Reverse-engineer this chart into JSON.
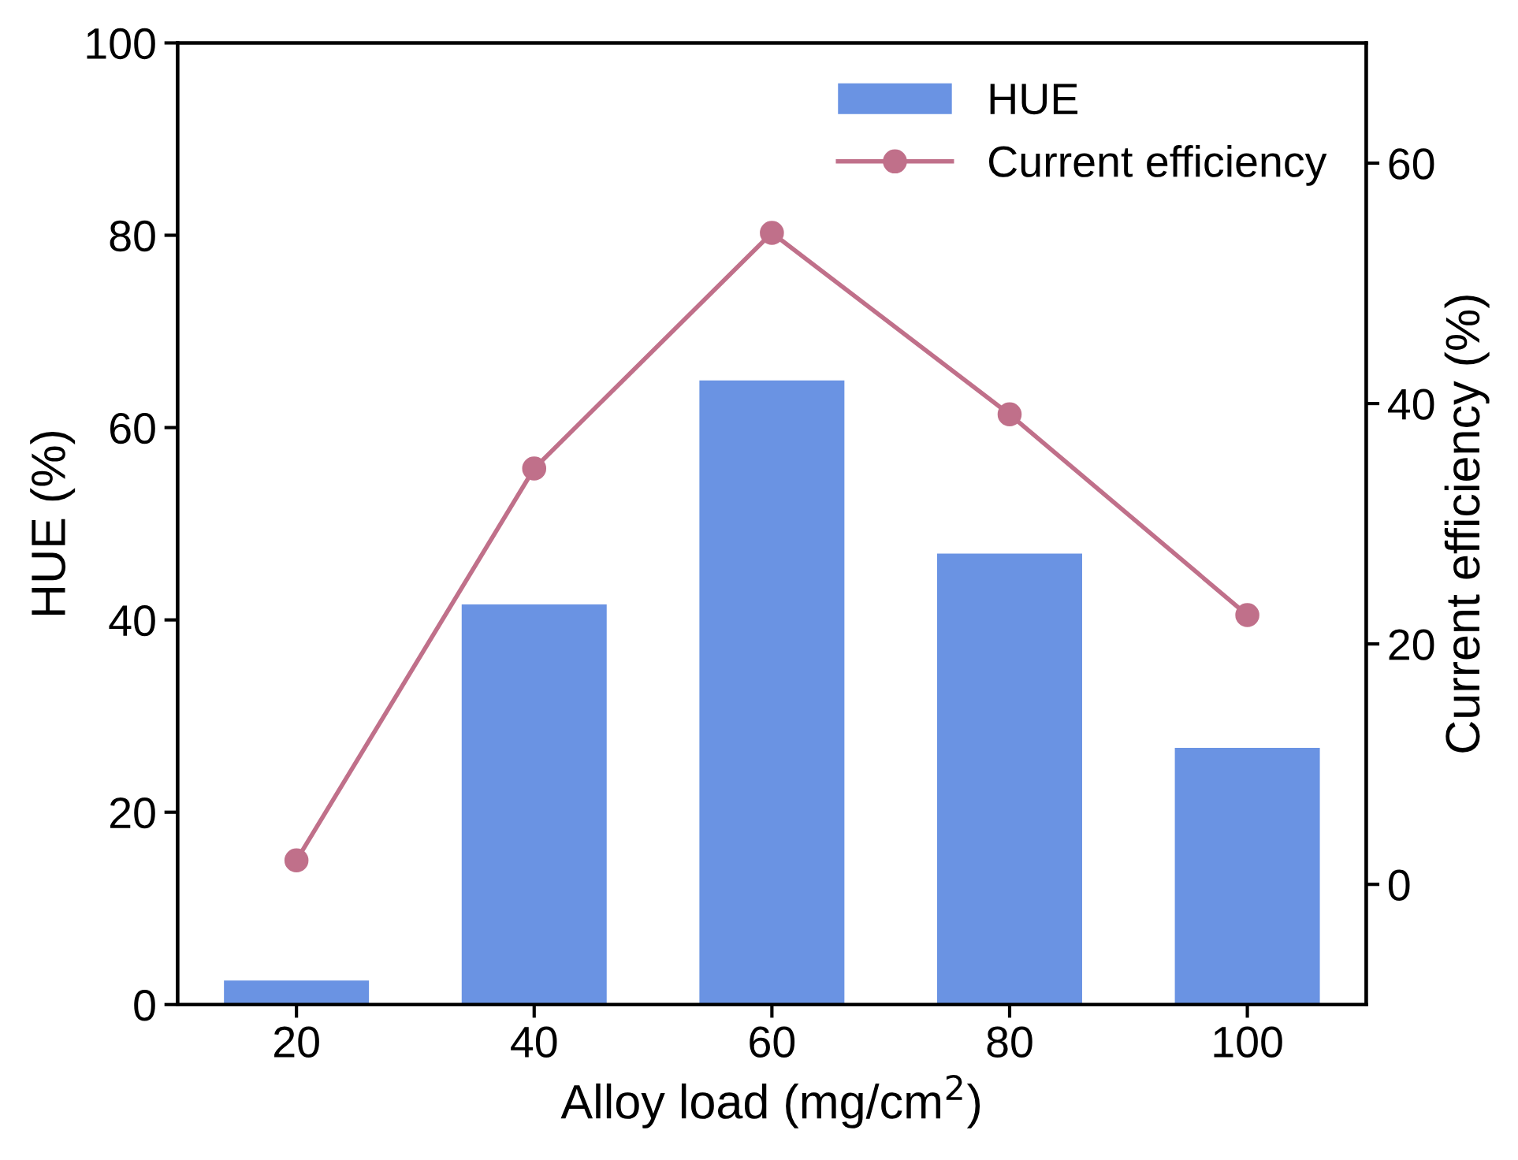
{
  "chart_data": {
    "type": "bar",
    "xlabel": "Alloy load (mg/cm$^{2}$)",
    "ylabel": "HUE (%)",
    "y2label": "Current efficiency (%)",
    "x": [
      20,
      40,
      60,
      80,
      100
    ],
    "xlim": [
      10,
      110
    ],
    "xticks": [
      20,
      40,
      60,
      80,
      100
    ],
    "ylim": [
      0,
      100
    ],
    "yticks": [
      0,
      20,
      40,
      60,
      80,
      100
    ],
    "y2lim": [
      -10,
      70
    ],
    "y2ticks": [
      0,
      20,
      40,
      60
    ],
    "series": [
      {
        "name": "HUE",
        "color": "#6a93e3",
        "values": [
          2.5,
          41.6,
          64.9,
          46.9,
          26.7
        ]
      },
      {
        "name": "Current efficiency",
        "type": "line",
        "axis": "y2",
        "color": "#c0708a",
        "marker": "circle",
        "line_style": "solid",
        "values": [
          2.0,
          34.6,
          54.2,
          39.1,
          22.4
        ]
      }
    ],
    "grid": false,
    "legend": "top right"
  }
}
